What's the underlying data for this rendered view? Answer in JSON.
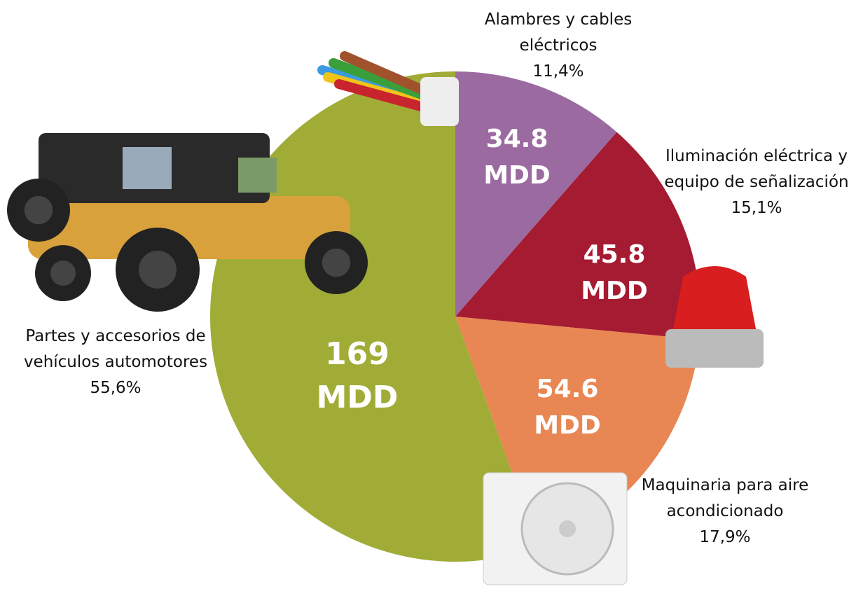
{
  "chart_data": {
    "type": "pie",
    "categories": [
      "Alambres y cables eléctricos",
      "Iluminación eléctrica y equipo de señalización",
      "Maquinaria para aire acondicionado",
      "Partes y accesorios de vehículos automotores"
    ],
    "values": [
      34.8,
      45.8,
      54.6,
      169
    ],
    "value_labels": [
      "34.8 MDD",
      "45.8 MDD",
      "54.6 MDD",
      "169 MDD"
    ],
    "shares": [
      11.4,
      15.1,
      17.9,
      55.6
    ],
    "share_labels": [
      "11,4%",
      "15,1%",
      "17,9%",
      "55,6%"
    ],
    "colors": [
      "#9a6aa0",
      "#a51b31",
      "#e88753",
      "#a0ac36"
    ]
  }
}
